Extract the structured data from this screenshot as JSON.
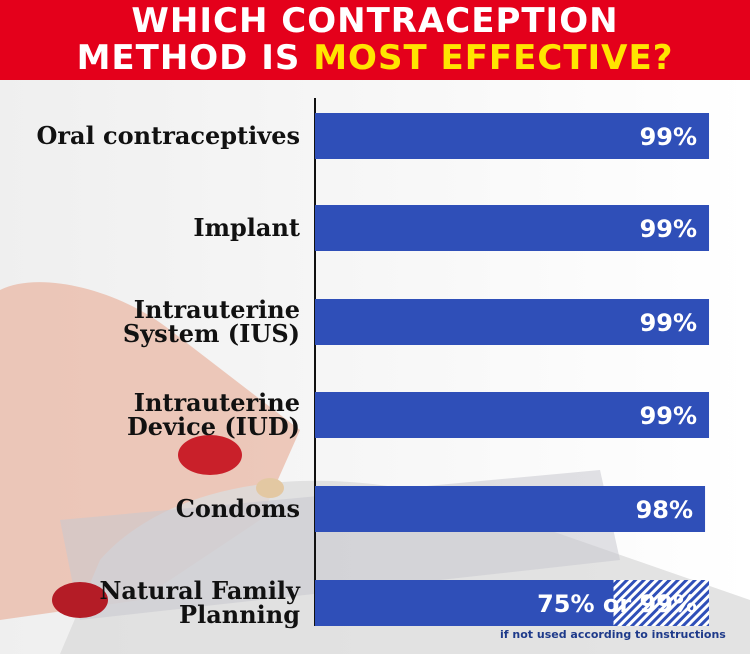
{
  "header": {
    "title_line1": "WHICH CONTRACEPTION",
    "title_line2_white": "METHOD IS ",
    "title_line2_yellow": "MOST EFFECTIVE?"
  },
  "colors": {
    "header_bg": "#e4001b",
    "highlight": "#ffe500",
    "bar": "#2f4fb8"
  },
  "chart_data": {
    "type": "bar",
    "orientation": "horizontal",
    "title": "WHICH CONTRACEPTION METHOD IS MOST EFFECTIVE?",
    "categories": [
      "Oral contraceptives",
      "Implant",
      "Intrauterine System (IUS)",
      "Intrauterine Device (IUD)",
      "Condoms",
      "Natural Family Planning"
    ],
    "label_lines": [
      [
        "Oral contraceptives"
      ],
      [
        "Implant"
      ],
      [
        "Intrauterine",
        "System (IUS)"
      ],
      [
        "Intrauterine",
        "Device (IUD)"
      ],
      [
        "Condoms"
      ],
      [
        "Natural Family",
        "Planning"
      ]
    ],
    "values": [
      99,
      99,
      99,
      99,
      98,
      99
    ],
    "value_labels": [
      "99%",
      "99%",
      "99%",
      "99%",
      "98%",
      "75% or 99%"
    ],
    "notes": [
      null,
      null,
      null,
      null,
      null,
      {
        "lower_value": 75,
        "upper_value": 99,
        "footnote": "if not used according to instructions"
      }
    ],
    "xlim": [
      0,
      100
    ],
    "grid": false
  }
}
